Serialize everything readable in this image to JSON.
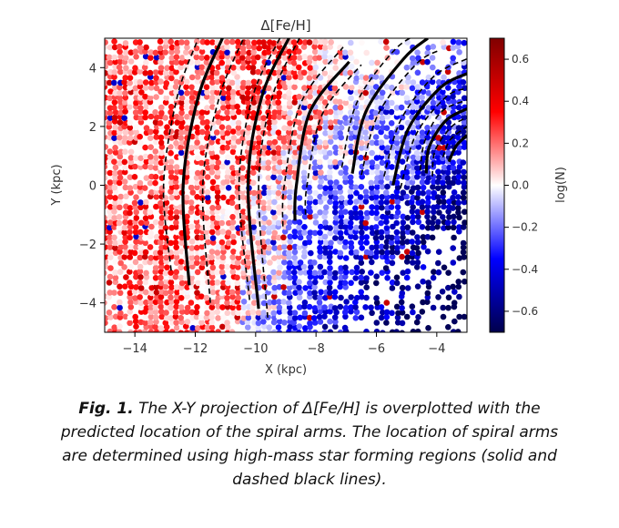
{
  "chart_data": {
    "type": "scatter",
    "title": "Δ[Fe/H]",
    "xlabel": "X (kpc)",
    "ylabel": "Y (kpc)",
    "xlim": [
      -15,
      -3
    ],
    "ylim": [
      -5,
      5
    ],
    "x_ticks": [
      "−14",
      "−12",
      "−10",
      "−8",
      "−6",
      "−4"
    ],
    "x_tick_values": [
      -14,
      -12,
      -10,
      -8,
      -6,
      -4
    ],
    "y_ticks": [
      "4",
      "2",
      "0",
      "−2",
      "−4"
    ],
    "y_tick_values": [
      4,
      2,
      0,
      -2,
      -4
    ],
    "colorbar": {
      "label": "log(N)",
      "range": [
        -0.7,
        0.7
      ],
      "ticks": [
        "0.6",
        "0.4",
        "0.2",
        "0.0",
        "−0.2",
        "−0.4",
        "−0.6"
      ],
      "tick_values": [
        0.6,
        0.4,
        0.2,
        0.0,
        -0.2,
        -0.4,
        -0.6
      ],
      "colormap": "seismic",
      "color_low": "#00004c",
      "color_mid": "#ffffff",
      "color_high": "#800000"
    },
    "series": [
      {
        "style": "solid",
        "points": [
          [
            -12.2,
            -3.4
          ],
          [
            -12.4,
            0.0
          ],
          [
            -11.9,
            3.0
          ],
          [
            -11.1,
            5.0
          ]
        ]
      },
      {
        "style": "dashed",
        "points": [
          [
            -12.8,
            -2.9
          ],
          [
            -13.05,
            0.0
          ],
          [
            -12.6,
            3.0
          ],
          [
            -11.9,
            5.0
          ]
        ]
      },
      {
        "style": "dashed",
        "points": [
          [
            -11.5,
            -4.0
          ],
          [
            -11.75,
            0.0
          ],
          [
            -11.2,
            3.0
          ],
          [
            -10.4,
            5.0
          ]
        ]
      },
      {
        "style": "solid",
        "points": [
          [
            -9.9,
            -4.2
          ],
          [
            -10.25,
            0.0
          ],
          [
            -9.8,
            3.0
          ],
          [
            -8.9,
            5.0
          ]
        ]
      },
      {
        "style": "dashed",
        "points": [
          [
            -10.2,
            -3.9
          ],
          [
            -10.55,
            0.0
          ],
          [
            -10.1,
            3.0
          ],
          [
            -9.2,
            5.0
          ]
        ]
      },
      {
        "style": "dashed",
        "points": [
          [
            -9.6,
            -4.5
          ],
          [
            -9.9,
            0.0
          ],
          [
            -9.45,
            3.0
          ],
          [
            -8.55,
            5.0
          ]
        ]
      },
      {
        "style": "solid",
        "points": [
          [
            -8.7,
            -1.2
          ],
          [
            -8.65,
            0.0
          ],
          [
            -8.2,
            2.5
          ],
          [
            -6.9,
            4.2
          ]
        ]
      },
      {
        "style": "dashed",
        "points": [
          [
            -9.1,
            -1.4
          ],
          [
            -9.05,
            0.0
          ],
          [
            -8.5,
            2.8
          ],
          [
            -7.1,
            4.7
          ]
        ]
      },
      {
        "style": "dashed",
        "points": [
          [
            -8.35,
            -1.0
          ],
          [
            -8.3,
            0.0
          ],
          [
            -7.8,
            2.4
          ],
          [
            -6.5,
            4.1
          ]
        ]
      },
      {
        "style": "solid",
        "points": [
          [
            -6.8,
            0.4
          ],
          [
            -6.35,
            2.5
          ],
          [
            -5.1,
            4.3
          ],
          [
            -4.3,
            5.0
          ]
        ]
      },
      {
        "style": "dashed",
        "points": [
          [
            -7.15,
            0.6
          ],
          [
            -6.65,
            2.8
          ],
          [
            -5.4,
            4.6
          ],
          [
            -4.5,
            5.2
          ]
        ]
      },
      {
        "style": "dashed",
        "points": [
          [
            -6.5,
            0.35
          ],
          [
            -5.95,
            2.4
          ],
          [
            -4.7,
            4.1
          ],
          [
            -3.9,
            4.6
          ]
        ]
      },
      {
        "style": "solid",
        "points": [
          [
            -5.45,
            0.0
          ],
          [
            -4.95,
            1.9
          ],
          [
            -3.9,
            3.3
          ],
          [
            -3.0,
            3.8
          ]
        ]
      },
      {
        "style": "dashed",
        "points": [
          [
            -5.75,
            0.3
          ],
          [
            -5.2,
            2.2
          ],
          [
            -4.1,
            3.7
          ],
          [
            -3.0,
            4.3
          ]
        ]
      },
      {
        "style": "dashed",
        "points": [
          [
            -5.2,
            -0.1
          ],
          [
            -4.7,
            1.7
          ],
          [
            -3.7,
            3.0
          ],
          [
            -3.0,
            3.3
          ]
        ]
      },
      {
        "style": "solid",
        "points": [
          [
            -4.35,
            0.4
          ],
          [
            -4.25,
            1.3
          ],
          [
            -3.7,
            2.2
          ],
          [
            -3.0,
            2.6
          ]
        ]
      },
      {
        "style": "dashed",
        "points": [
          [
            -4.55,
            0.5
          ],
          [
            -4.4,
            1.5
          ],
          [
            -3.85,
            2.5
          ],
          [
            -3.0,
            2.9
          ]
        ]
      },
      {
        "style": "dashed",
        "points": [
          [
            -4.15,
            0.3
          ],
          [
            -4.05,
            1.2
          ],
          [
            -3.5,
            2.0
          ],
          [
            -3.0,
            2.3
          ]
        ]
      },
      {
        "style": "solid",
        "points": [
          [
            -3.6,
            0.8
          ],
          [
            -3.35,
            1.35
          ],
          [
            -3.0,
            1.7
          ]
        ]
      },
      {
        "style": "dashed",
        "points": [
          [
            -3.8,
            0.95
          ],
          [
            -3.55,
            1.55
          ],
          [
            -3.0,
            2.0
          ]
        ]
      }
    ],
    "grid": false,
    "legend": "none"
  },
  "caption": {
    "label": "Fig. 1.",
    "text": " The X-Y projection of Δ[Fe/H]  is overplotted with the predicted location of the spiral arms. The location of spiral arms are determined using high-mass star forming regions (solid and dashed black lines)."
  }
}
